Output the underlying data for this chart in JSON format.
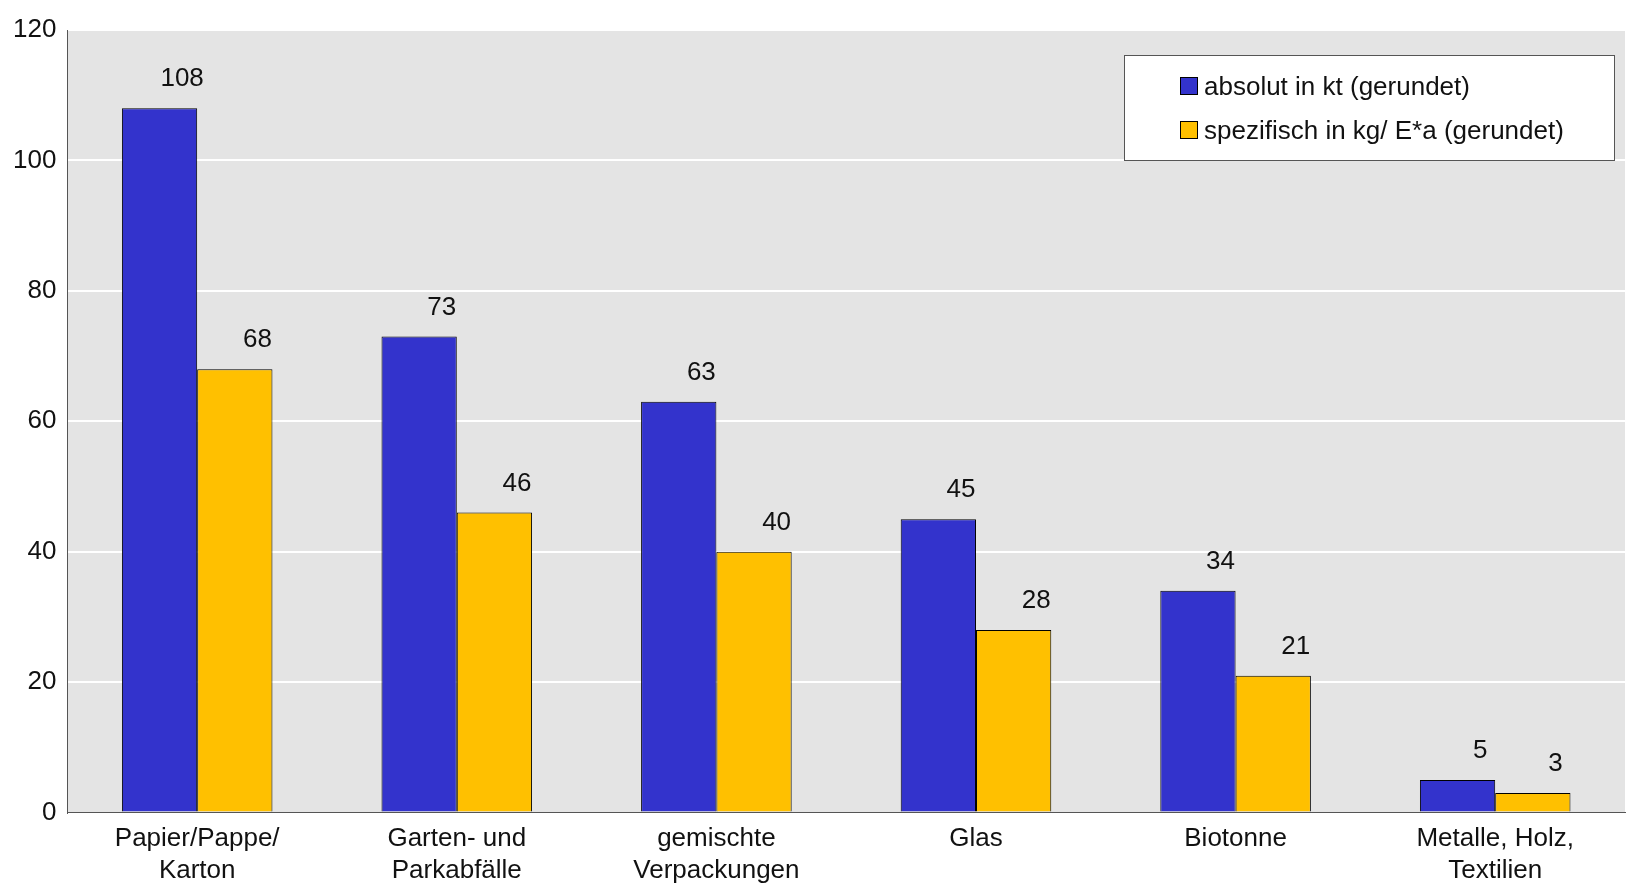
{
  "chart_data": {
    "type": "bar",
    "categories": [
      "Papier/Pappe/\nKarton",
      "Garten- und\nParkabfälle",
      "gemischte\nVerpackungen",
      "Glas",
      "Biotonne",
      "Metalle, Holz,\nTextilien"
    ],
    "series": [
      {
        "name": "absolut in kt (gerundet)",
        "color": "#3333cc",
        "values": [
          108,
          73,
          63,
          45,
          34,
          5
        ]
      },
      {
        "name": "spezifisch in kg/ E*a (gerundet)",
        "color": "#ffc000",
        "values": [
          68,
          46,
          40,
          28,
          21,
          3
        ]
      }
    ],
    "ylim": [
      0,
      120
    ],
    "yticks": [
      0,
      20,
      40,
      60,
      80,
      100,
      120
    ],
    "grid": "y",
    "legend": "top right",
    "data_labels": true
  }
}
